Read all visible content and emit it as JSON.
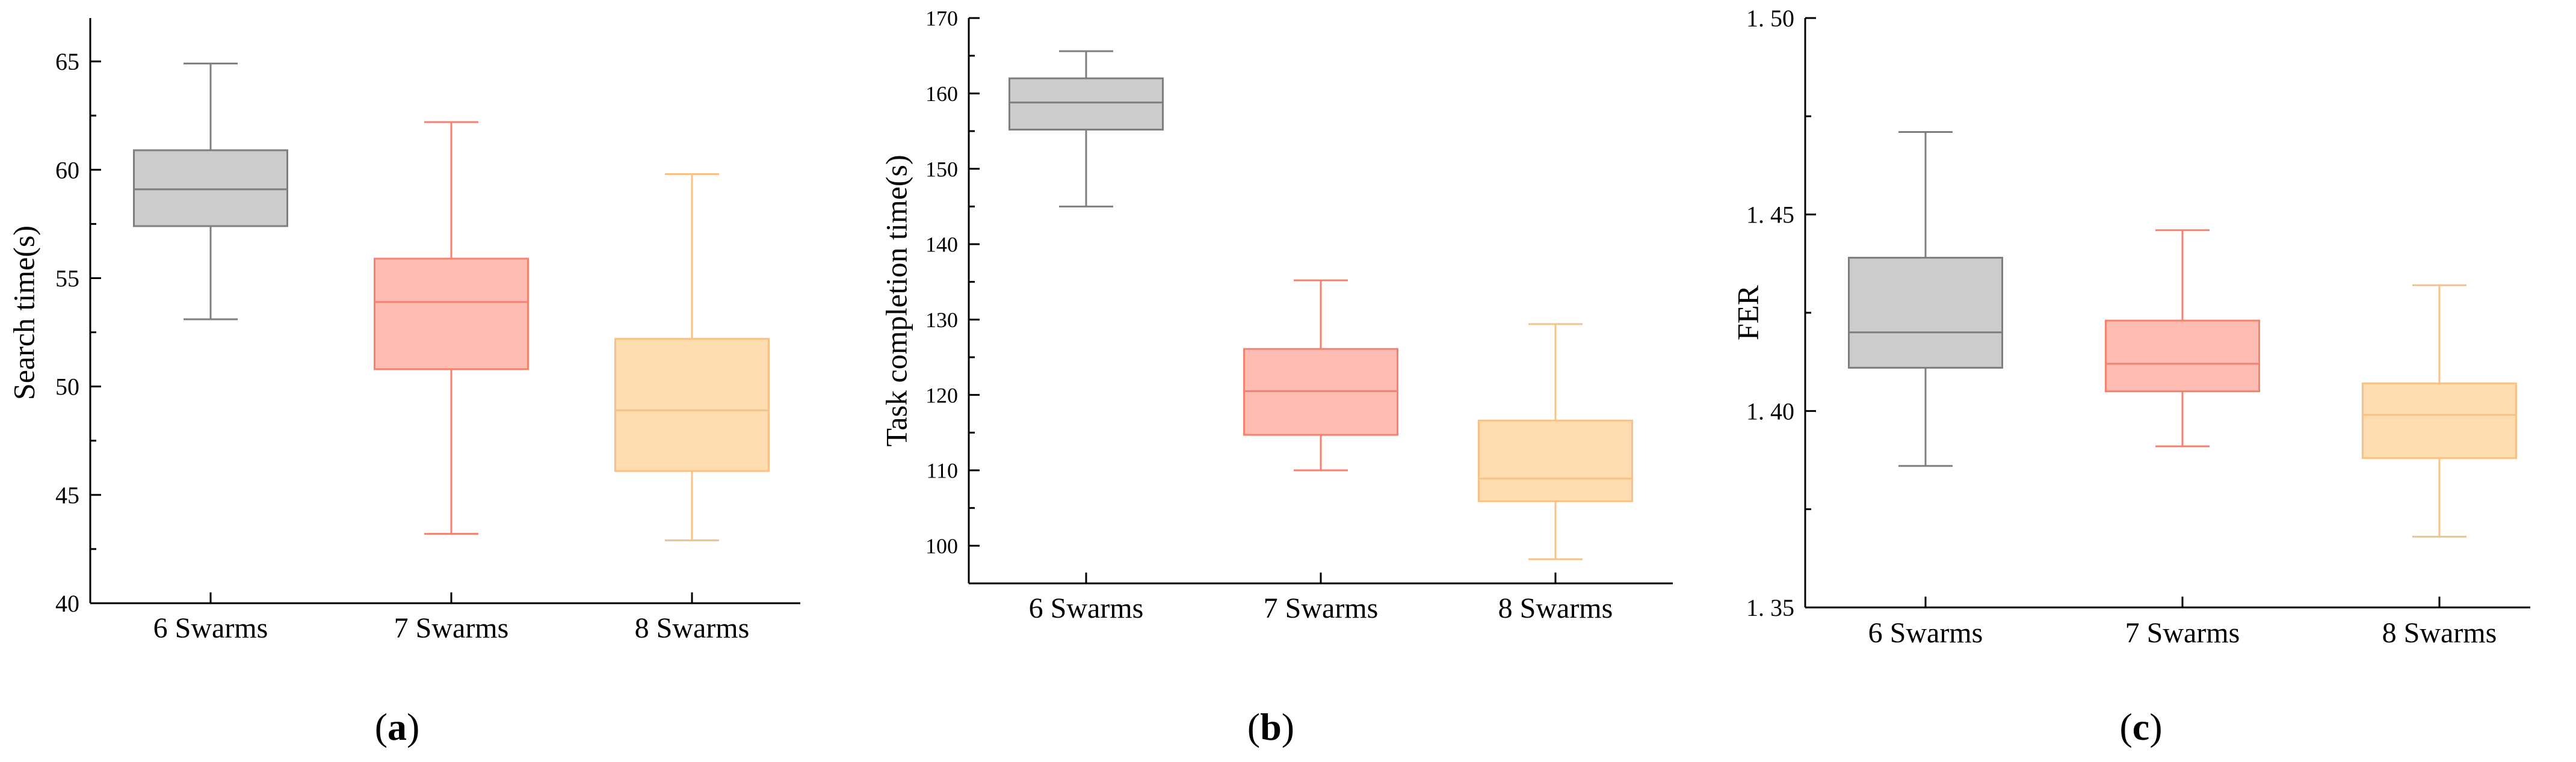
{
  "chart_data": [
    {
      "type": "box",
      "panel_label": "a",
      "title": "",
      "xlabel": "",
      "ylabel": "Search time(s)",
      "categories": [
        "6 Swarms",
        "7 Swarms",
        "8 Swarms"
      ],
      "ylim": [
        40,
        67
      ],
      "yticks": [
        40,
        45,
        50,
        55,
        60,
        65
      ],
      "boxes": [
        {
          "category": "6 Swarms",
          "min": 53.1,
          "q1": 57.4,
          "median": 59.1,
          "q3": 60.9,
          "max": 64.9,
          "fill": "#cccccc",
          "stroke": "#7f7f7f"
        },
        {
          "category": "7 Swarms",
          "min": 43.2,
          "q1": 50.8,
          "median": 53.9,
          "q3": 55.9,
          "max": 62.2,
          "fill": "#ffbcb3",
          "stroke": "#f4826f"
        },
        {
          "category": "8 Swarms",
          "min": 42.9,
          "q1": 46.1,
          "median": 48.9,
          "q3": 52.2,
          "max": 59.8,
          "fill": "#fddcb0",
          "stroke": "#f8c287"
        }
      ]
    },
    {
      "type": "box",
      "panel_label": "b",
      "title": "",
      "xlabel": "",
      "ylabel": "Task completion time(s)",
      "categories": [
        "6 Swarms",
        "7 Swarms",
        "8 Swarms"
      ],
      "ylim": [
        95,
        170
      ],
      "yticks": [
        100,
        110,
        120,
        130,
        140,
        150,
        160,
        170
      ],
      "boxes": [
        {
          "category": "6 Swarms",
          "min": 145.0,
          "q1": 155.2,
          "median": 158.8,
          "q3": 162.0,
          "max": 165.6,
          "fill": "#cccccc",
          "stroke": "#7f7f7f"
        },
        {
          "category": "7 Swarms",
          "min": 110.0,
          "q1": 114.7,
          "median": 120.5,
          "q3": 126.1,
          "max": 135.2,
          "fill": "#ffbcb3",
          "stroke": "#f4826f"
        },
        {
          "category": "8 Swarms",
          "min": 98.2,
          "q1": 105.9,
          "median": 108.9,
          "q3": 116.6,
          "max": 129.4,
          "fill": "#fddcb0",
          "stroke": "#f8c287"
        }
      ]
    },
    {
      "type": "box",
      "panel_label": "c",
      "title": "",
      "xlabel": "",
      "ylabel": "FER",
      "categories": [
        "6 Swarms",
        "7 Swarms",
        "8 Swarms"
      ],
      "ylim": [
        1.35,
        1.5
      ],
      "yticks": [
        1.35,
        1.4,
        1.45,
        1.5
      ],
      "ytick_labels": [
        "1. 35",
        "1. 40",
        "1. 45",
        "1. 50"
      ],
      "boxes": [
        {
          "category": "6 Swarms",
          "min": 1.386,
          "q1": 1.411,
          "median": 1.42,
          "q3": 1.439,
          "max": 1.471,
          "fill": "#cccccc",
          "stroke": "#7f7f7f"
        },
        {
          "category": "7 Swarms",
          "min": 1.391,
          "q1": 1.405,
          "median": 1.412,
          "q3": 1.423,
          "max": 1.446,
          "fill": "#ffbcb3",
          "stroke": "#f4826f"
        },
        {
          "category": "8 Swarms",
          "min": 1.368,
          "q1": 1.388,
          "median": 1.399,
          "q3": 1.407,
          "max": 1.432,
          "fill": "#fddcb0",
          "stroke": "#f8c287"
        }
      ]
    }
  ]
}
